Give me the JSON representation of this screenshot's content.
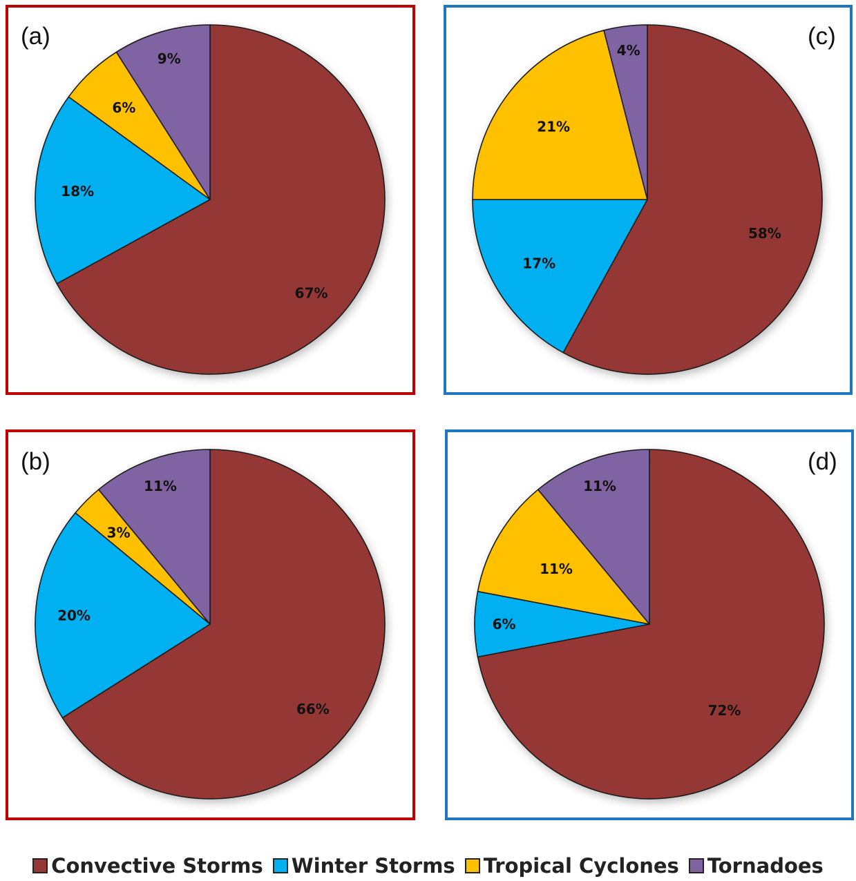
{
  "legend": [
    {
      "name": "Convective Storms",
      "color": "#953735"
    },
    {
      "name": "Winter Storms",
      "color": "#00B0F0"
    },
    {
      "name": "Tropical Cyclones",
      "color": "#FFC000"
    },
    {
      "name": "Tornadoes",
      "color": "#8064A2"
    }
  ],
  "chart_data": [
    {
      "type": "pie",
      "panel_label": "(a)",
      "slices": [
        {
          "category": "Convective Storms",
          "value": 67,
          "label": "67%"
        },
        {
          "category": "Winter Storms",
          "value": 18,
          "label": "18%"
        },
        {
          "category": "Tropical Cyclones",
          "value": 6,
          "label": "6%"
        },
        {
          "category": "Tornadoes",
          "value": 9,
          "label": "9%"
        }
      ]
    },
    {
      "type": "pie",
      "panel_label": "(b)",
      "slices": [
        {
          "category": "Convective Storms",
          "value": 66,
          "label": "66%"
        },
        {
          "category": "Winter Storms",
          "value": 20,
          "label": "20%"
        },
        {
          "category": "Tropical Cyclones",
          "value": 3,
          "label": "3%"
        },
        {
          "category": "Tornadoes",
          "value": 11,
          "label": "11%"
        }
      ]
    },
    {
      "type": "pie",
      "panel_label": "(c)",
      "slices": [
        {
          "category": "Convective Storms",
          "value": 58,
          "label": "58%"
        },
        {
          "category": "Winter Storms",
          "value": 17,
          "label": "17%"
        },
        {
          "category": "Tropical Cyclones",
          "value": 21,
          "label": "21%"
        },
        {
          "category": "Tornadoes",
          "value": 4,
          "label": "4%"
        }
      ]
    },
    {
      "type": "pie",
      "panel_label": "(d)",
      "slices": [
        {
          "category": "Convective Storms",
          "value": 72,
          "label": "72%"
        },
        {
          "category": "Winter Storms",
          "value": 6,
          "label": "6%"
        },
        {
          "category": "Tropical Cyclones",
          "value": 11,
          "label": "11%"
        },
        {
          "category": "Tornadoes",
          "value": 11,
          "label": "11%"
        }
      ]
    }
  ]
}
